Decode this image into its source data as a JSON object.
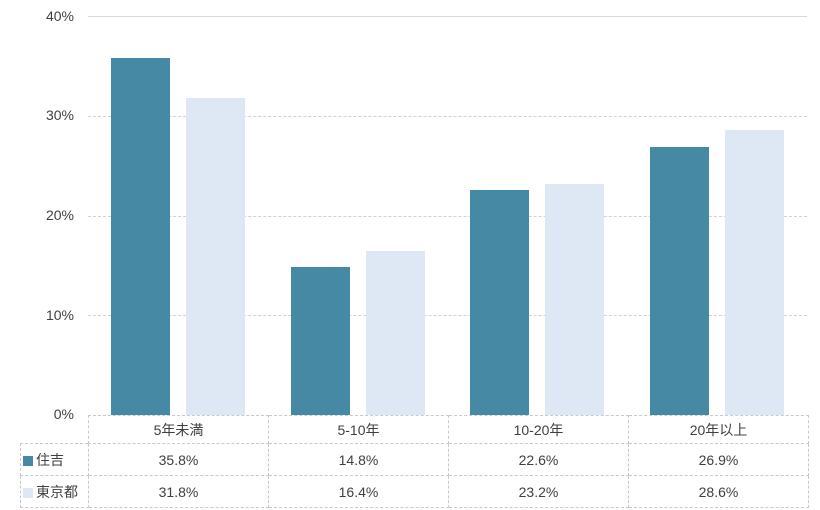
{
  "chart_data": {
    "type": "bar",
    "categories": [
      "5年未満",
      "5-10年",
      "10-20年",
      "20年以上"
    ],
    "series": [
      {
        "name": "住吉",
        "color": "#4589A4",
        "values": [
          35.8,
          14.8,
          22.6,
          26.9
        ]
      },
      {
        "name": "東京都",
        "color": "#DDE8F4",
        "values": [
          31.8,
          16.4,
          23.2,
          28.6
        ]
      }
    ],
    "title": "",
    "xlabel": "",
    "ylabel": "",
    "ylim": [
      0,
      40
    ],
    "yticks": [
      "40%",
      "30%",
      "20%",
      "10%",
      "0%"
    ],
    "grid": "horizontal-dashed",
    "legend_position": "data-table-left",
    "gridline_color": "#d9d9d9"
  },
  "data_table": {
    "headers": [
      "5年未満",
      "5-10年",
      "10-20年",
      "20年以上"
    ],
    "rows": [
      {
        "label": "住吉",
        "swatch_color": "#4589A4",
        "cells": [
          "35.8%",
          "14.8%",
          "22.6%",
          "26.9%"
        ]
      },
      {
        "label": "東京都",
        "swatch_color": "#DDE8F4",
        "cells": [
          "31.8%",
          "16.4%",
          "23.2%",
          "28.6%"
        ]
      }
    ]
  }
}
